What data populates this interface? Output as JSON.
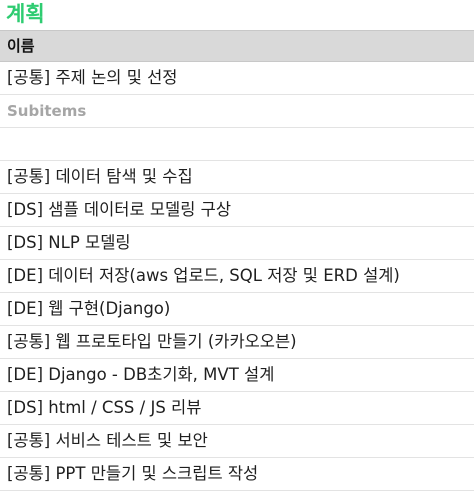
{
  "group": {
    "title": "계획"
  },
  "table": {
    "header": "이름",
    "first_item": "[공통] 주제 논의 및 선정",
    "subitems_label": "Subitems",
    "empty_cell": "",
    "items": [
      "[공통] 데이터 탐색 및 수집",
      "[DS] 샘플 데이터로 모델링 구상",
      "[DS] NLP 모델링",
      "[DE] 데이터 저장(aws 업로드, SQL 저장 및 ERD 설계)",
      "[DE] 웹 구현(Django)",
      "[공통] 웹 프로토타입 만들기 (카카오오븐)",
      "[DE] Django - DB초기화, MVT 설계",
      "[DS] html / CSS / JS 리뷰",
      "[공통] 서비스 테스트 및 보안",
      "[공통] PPT 만들기 및 스크립트 작성"
    ]
  },
  "colors": {
    "group_title": "#2ecc71",
    "header_bg": "#d9d9d9",
    "subitems_text": "#a6a6a6"
  }
}
